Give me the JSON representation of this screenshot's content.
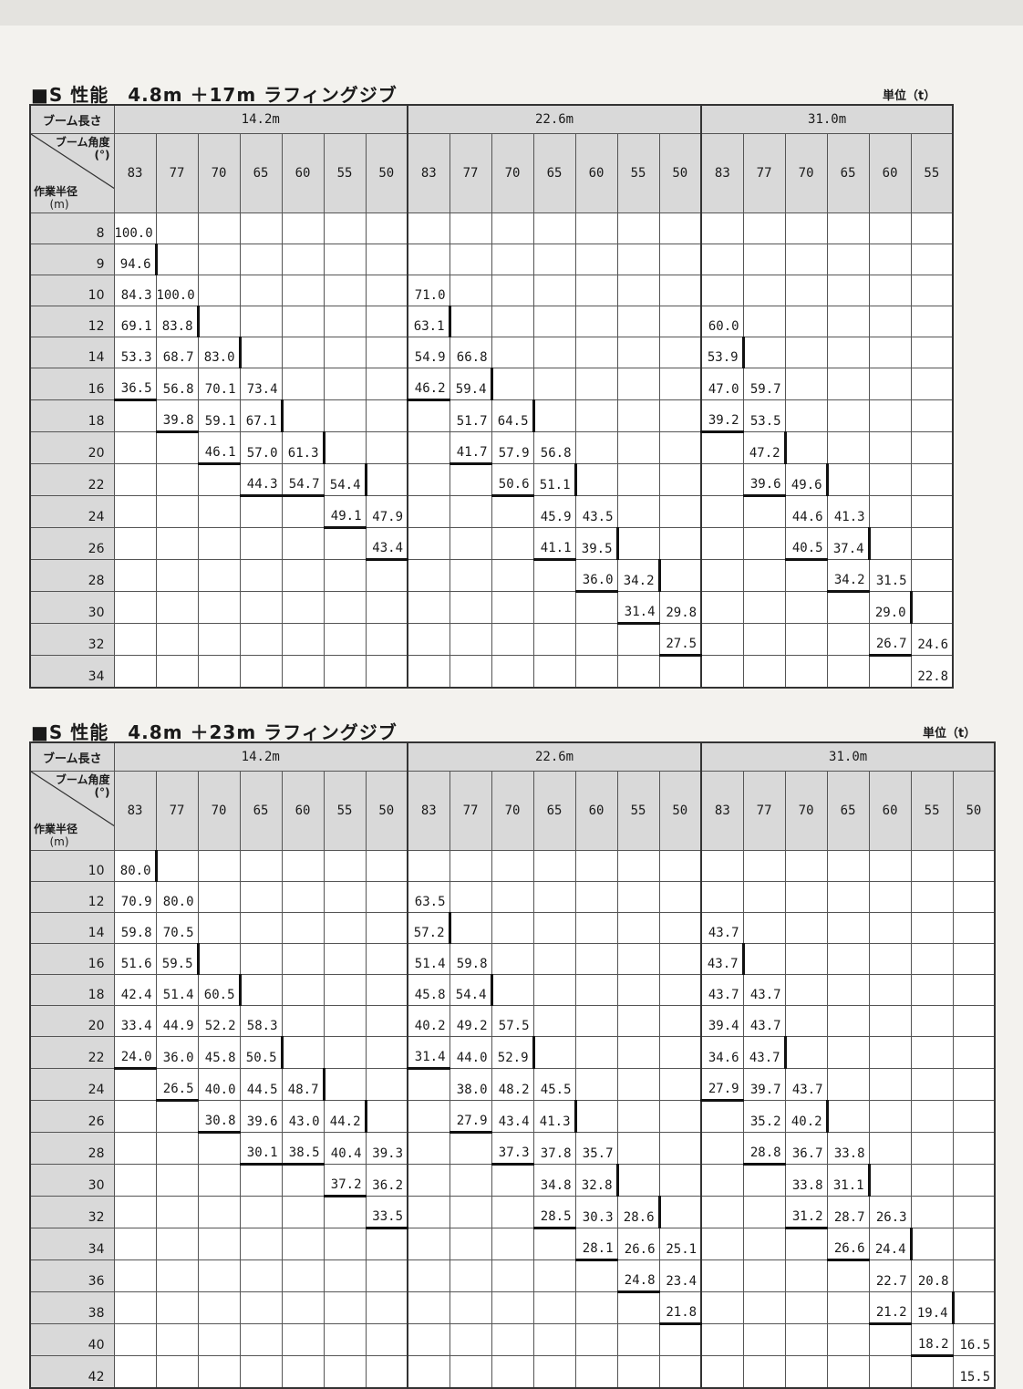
{
  "tables": [
    {
      "title": "■S 性能　4.8m ＋17m ラフィングジブ",
      "unit": "単位（t）",
      "boom_length_label": "ブーム長さ",
      "boom_angle_label": "ブーム角度",
      "boom_angle_unit": "(°)",
      "radius_label": "作業半径",
      "radius_unit": "(m)",
      "groups": [
        {
          "label": "14.2m",
          "angles": [
            "83",
            "77",
            "70",
            "65",
            "60",
            "55",
            "50"
          ]
        },
        {
          "label": "22.6m",
          "angles": [
            "83",
            "77",
            "70",
            "65",
            "60",
            "55",
            "50"
          ]
        },
        {
          "label": "31.0m",
          "angles": [
            "83",
            "77",
            "70",
            "65",
            "60",
            "55"
          ]
        }
      ],
      "rows": [
        {
          "radius": "8",
          "values": [
            "100.0",
            "",
            "",
            "",
            "",
            "",
            "",
            "",
            "",
            "",
            "",
            "",
            "",
            "",
            "",
            "",
            "",
            "",
            "",
            ""
          ]
        },
        {
          "radius": "9",
          "values": [
            "94.6",
            "",
            "",
            "",
            "",
            "",
            "",
            "",
            "",
            "",
            "",
            "",
            "",
            "",
            "",
            "",
            "",
            "",
            "",
            ""
          ]
        },
        {
          "radius": "10",
          "values": [
            "84.3",
            "100.0",
            "",
            "",
            "",
            "",
            "",
            "71.0",
            "",
            "",
            "",
            "",
            "",
            "",
            "",
            "",
            "",
            "",
            "",
            ""
          ]
        },
        {
          "radius": "12",
          "values": [
            "69.1",
            "83.8",
            "",
            "",
            "",
            "",
            "",
            "63.1",
            "",
            "",
            "",
            "",
            "",
            "",
            "60.0",
            "",
            "",
            "",
            "",
            ""
          ]
        },
        {
          "radius": "14",
          "values": [
            "53.3",
            "68.7",
            "83.0",
            "",
            "",
            "",
            "",
            "54.9",
            "66.8",
            "",
            "",
            "",
            "",
            "",
            "53.9",
            "",
            "",
            "",
            "",
            ""
          ]
        },
        {
          "radius": "16",
          "values": [
            "36.5",
            "56.8",
            "70.1",
            "73.4",
            "",
            "",
            "",
            "46.2",
            "59.4",
            "",
            "",
            "",
            "",
            "",
            "47.0",
            "59.7",
            "",
            "",
            "",
            ""
          ]
        },
        {
          "radius": "18",
          "values": [
            "",
            "39.8",
            "59.1",
            "67.1",
            "",
            "",
            "",
            "",
            "51.7",
            "64.5",
            "",
            "",
            "",
            "",
            "39.2",
            "53.5",
            "",
            "",
            "",
            ""
          ]
        },
        {
          "radius": "20",
          "values": [
            "",
            "",
            "46.1",
            "57.0",
            "61.3",
            "",
            "",
            "",
            "41.7",
            "57.9",
            "56.8",
            "",
            "",
            "",
            "",
            "47.2",
            "",
            "",
            "",
            ""
          ]
        },
        {
          "radius": "22",
          "values": [
            "",
            "",
            "",
            "44.3",
            "54.7",
            "54.4",
            "",
            "",
            "",
            "50.6",
            "51.1",
            "",
            "",
            "",
            "",
            "39.6",
            "49.6",
            "",
            "",
            ""
          ]
        },
        {
          "radius": "24",
          "values": [
            "",
            "",
            "",
            "",
            "",
            "49.1",
            "47.9",
            "",
            "",
            "",
            "45.9",
            "43.5",
            "",
            "",
            "",
            "",
            "44.6",
            "41.3",
            "",
            ""
          ]
        },
        {
          "radius": "26",
          "values": [
            "",
            "",
            "",
            "",
            "",
            "",
            "43.4",
            "",
            "",
            "",
            "41.1",
            "39.5",
            "",
            "",
            "",
            "",
            "40.5",
            "37.4",
            "",
            ""
          ]
        },
        {
          "radius": "28",
          "values": [
            "",
            "",
            "",
            "",
            "",
            "",
            "",
            "",
            "",
            "",
            "",
            "36.0",
            "34.2",
            "",
            "",
            "",
            "",
            "34.2",
            "31.5",
            ""
          ]
        },
        {
          "radius": "30",
          "values": [
            "",
            "",
            "",
            "",
            "",
            "",
            "",
            "",
            "",
            "",
            "",
            "",
            "31.4",
            "29.8",
            "",
            "",
            "",
            "",
            "29.0",
            ""
          ]
        },
        {
          "radius": "32",
          "values": [
            "",
            "",
            "",
            "",
            "",
            "",
            "",
            "",
            "",
            "",
            "",
            "",
            "",
            "27.5",
            "",
            "",
            "",
            "",
            "26.7",
            "24.6"
          ]
        },
        {
          "radius": "34",
          "values": [
            "",
            "",
            "",
            "",
            "",
            "",
            "",
            "",
            "",
            "",
            "",
            "",
            "",
            "",
            "",
            "",
            "",
            "",
            "",
            "22.8"
          ]
        }
      ]
    },
    {
      "title": "■S 性能　4.8m ＋23m ラフィングジブ",
      "unit": "単位（t）",
      "boom_length_label": "ブーム長さ",
      "boom_angle_label": "ブーム角度",
      "boom_angle_unit": "(°)",
      "radius_label": "作業半径",
      "radius_unit": "(m)",
      "groups": [
        {
          "label": "14.2m",
          "angles": [
            "83",
            "77",
            "70",
            "65",
            "60",
            "55",
            "50"
          ]
        },
        {
          "label": "22.6m",
          "angles": [
            "83",
            "77",
            "70",
            "65",
            "60",
            "55",
            "50"
          ]
        },
        {
          "label": "31.0m",
          "angles": [
            "83",
            "77",
            "70",
            "65",
            "60",
            "55",
            "50"
          ]
        }
      ],
      "rows": [
        {
          "radius": "10",
          "values": [
            "80.0",
            "",
            "",
            "",
            "",
            "",
            "",
            "",
            "",
            "",
            "",
            "",
            "",
            "",
            "",
            "",
            "",
            "",
            "",
            "",
            ""
          ]
        },
        {
          "radius": "12",
          "values": [
            "70.9",
            "80.0",
            "",
            "",
            "",
            "",
            "",
            "63.5",
            "",
            "",
            "",
            "",
            "",
            "",
            "",
            "",
            "",
            "",
            "",
            "",
            ""
          ]
        },
        {
          "radius": "14",
          "values": [
            "59.8",
            "70.5",
            "",
            "",
            "",
            "",
            "",
            "57.2",
            "",
            "",
            "",
            "",
            "",
            "",
            "43.7",
            "",
            "",
            "",
            "",
            "",
            ""
          ]
        },
        {
          "radius": "16",
          "values": [
            "51.6",
            "59.5",
            "",
            "",
            "",
            "",
            "",
            "51.4",
            "59.8",
            "",
            "",
            "",
            "",
            "",
            "43.7",
            "",
            "",
            "",
            "",
            "",
            ""
          ]
        },
        {
          "radius": "18",
          "values": [
            "42.4",
            "51.4",
            "60.5",
            "",
            "",
            "",
            "",
            "45.8",
            "54.4",
            "",
            "",
            "",
            "",
            "",
            "43.7",
            "43.7",
            "",
            "",
            "",
            "",
            ""
          ]
        },
        {
          "radius": "20",
          "values": [
            "33.4",
            "44.9",
            "52.2",
            "58.3",
            "",
            "",
            "",
            "40.2",
            "49.2",
            "57.5",
            "",
            "",
            "",
            "",
            "39.4",
            "43.7",
            "",
            "",
            "",
            "",
            ""
          ]
        },
        {
          "radius": "22",
          "values": [
            "24.0",
            "36.0",
            "45.8",
            "50.5",
            "",
            "",
            "",
            "31.4",
            "44.0",
            "52.9",
            "",
            "",
            "",
            "",
            "34.6",
            "43.7",
            "",
            "",
            "",
            "",
            ""
          ]
        },
        {
          "radius": "24",
          "values": [
            "",
            "26.5",
            "40.0",
            "44.5",
            "48.7",
            "",
            "",
            "",
            "38.0",
            "48.2",
            "45.5",
            "",
            "",
            "",
            "27.9",
            "39.7",
            "43.7",
            "",
            "",
            "",
            ""
          ]
        },
        {
          "radius": "26",
          "values": [
            "",
            "",
            "30.8",
            "39.6",
            "43.0",
            "44.2",
            "",
            "",
            "27.9",
            "43.4",
            "41.3",
            "",
            "",
            "",
            "",
            "35.2",
            "40.2",
            "",
            "",
            "",
            ""
          ]
        },
        {
          "radius": "28",
          "values": [
            "",
            "",
            "",
            "30.1",
            "38.5",
            "40.4",
            "39.3",
            "",
            "",
            "37.3",
            "37.8",
            "35.7",
            "",
            "",
            "",
            "28.8",
            "36.7",
            "33.8",
            "",
            "",
            ""
          ]
        },
        {
          "radius": "30",
          "values": [
            "",
            "",
            "",
            "",
            "",
            "37.2",
            "36.2",
            "",
            "",
            "",
            "34.8",
            "32.8",
            "",
            "",
            "",
            "",
            "33.8",
            "31.1",
            "",
            "",
            ""
          ]
        },
        {
          "radius": "32",
          "values": [
            "",
            "",
            "",
            "",
            "",
            "",
            "33.5",
            "",
            "",
            "",
            "28.5",
            "30.3",
            "28.6",
            "",
            "",
            "",
            "31.2",
            "28.7",
            "26.3",
            "",
            ""
          ]
        },
        {
          "radius": "34",
          "values": [
            "",
            "",
            "",
            "",
            "",
            "",
            "",
            "",
            "",
            "",
            "",
            "28.1",
            "26.6",
            "25.1",
            "",
            "",
            "",
            "26.6",
            "24.4",
            "",
            ""
          ]
        },
        {
          "radius": "36",
          "values": [
            "",
            "",
            "",
            "",
            "",
            "",
            "",
            "",
            "",
            "",
            "",
            "",
            "24.8",
            "23.4",
            "",
            "",
            "",
            "",
            "22.7",
            "20.8",
            ""
          ]
        },
        {
          "radius": "38",
          "values": [
            "",
            "",
            "",
            "",
            "",
            "",
            "",
            "",
            "",
            "",
            "",
            "",
            "",
            "21.8",
            "",
            "",
            "",
            "",
            "21.2",
            "19.4",
            ""
          ]
        },
        {
          "radius": "40",
          "values": [
            "",
            "",
            "",
            "",
            "",
            "",
            "",
            "",
            "",
            "",
            "",
            "",
            "",
            "",
            "",
            "",
            "",
            "",
            "",
            "18.2",
            "16.5"
          ]
        },
        {
          "radius": "42",
          "values": [
            "",
            "",
            "",
            "",
            "",
            "",
            "",
            "",
            "",
            "",
            "",
            "",
            "",
            "",
            "",
            "",
            "",
            "",
            "",
            "",
            "15.5"
          ]
        }
      ]
    }
  ]
}
